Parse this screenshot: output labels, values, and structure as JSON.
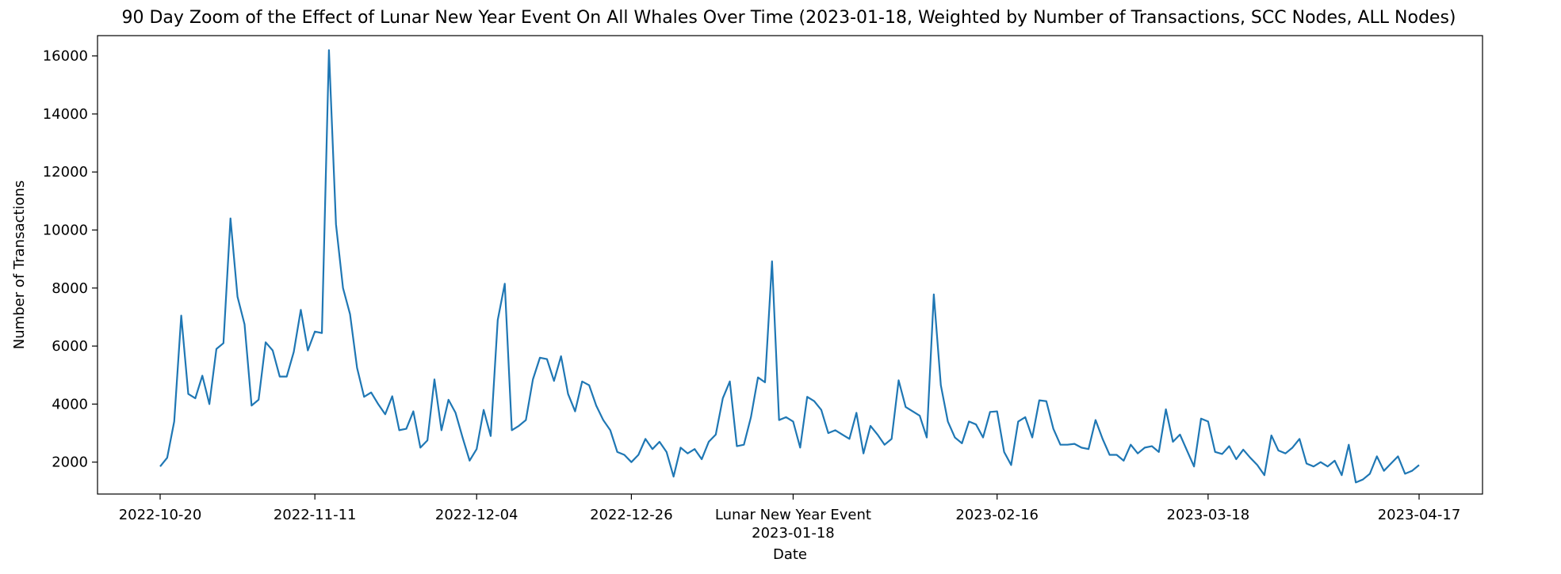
{
  "chart_data": {
    "type": "line",
    "title": "90 Day Zoom of the Effect of Lunar New Year Event On All Whales Over Time (2023-01-18, Weighted by Number of Transactions, SCC Nodes, ALL Nodes)",
    "xlabel": "Date",
    "ylabel": "Number of Transactions",
    "grid": false,
    "line_color": "#1f77b4",
    "x_start": "2022-10-20",
    "x_end": "2023-04-17",
    "ylim": [
      900,
      16700
    ],
    "x_ticks": [
      {
        "date": "2022-10-20",
        "label": "2022-10-20"
      },
      {
        "date": "2022-11-11",
        "label": "2022-11-11"
      },
      {
        "date": "2022-12-04",
        "label": "2022-12-04"
      },
      {
        "date": "2022-12-26",
        "label": "2022-12-26"
      },
      {
        "date": "2023-01-18",
        "label": "2023-01-18",
        "annotation": "Lunar New Year Event"
      },
      {
        "date": "2023-02-16",
        "label": "2023-02-16"
      },
      {
        "date": "2023-03-18",
        "label": "2023-03-18"
      },
      {
        "date": "2023-04-17",
        "label": "2023-04-17"
      }
    ],
    "y_ticks": [
      2000,
      4000,
      6000,
      8000,
      10000,
      12000,
      14000,
      16000
    ],
    "values": [
      1850,
      2150,
      3400,
      7050,
      4350,
      4200,
      4980,
      4000,
      5900,
      6100,
      10400,
      7700,
      6750,
      3950,
      4150,
      6130,
      5850,
      4950,
      4950,
      5800,
      7250,
      5850,
      6500,
      6450,
      16200,
      10200,
      8000,
      7100,
      5250,
      4250,
      4400,
      4000,
      3650,
      4270,
      3100,
      3150,
      3750,
      2500,
      2750,
      4850,
      3100,
      4150,
      3700,
      2850,
      2050,
      2450,
      3800,
      2900,
      6900,
      8150,
      3100,
      3250,
      3450,
      4850,
      5600,
      5550,
      4800,
      5650,
      4350,
      3750,
      4780,
      4650,
      3950,
      3450,
      3100,
      2350,
      2250,
      2000,
      2250,
      2800,
      2450,
      2700,
      2350,
      1500,
      2500,
      2300,
      2450,
      2100,
      2700,
      2950,
      4200,
      4780,
      2550,
      2600,
      3550,
      4920,
      4750,
      8920,
      3450,
      3550,
      3400,
      2500,
      4250,
      4100,
      3800,
      3000,
      3100,
      2950,
      2800,
      3700,
      2300,
      3250,
      2950,
      2600,
      2800,
      4820,
      3900,
      3750,
      3600,
      2850,
      7780,
      4650,
      3400,
      2850,
      2650,
      3400,
      3300,
      2850,
      3730,
      3750,
      2350,
      1900,
      3400,
      3550,
      2850,
      4130,
      4100,
      3150,
      2600,
      2600,
      2630,
      2500,
      2450,
      3450,
      2800,
      2250,
      2250,
      2050,
      2600,
      2300,
      2500,
      2550,
      2350,
      3820,
      2700,
      2950,
      2400,
      1850,
      3500,
      3400,
      2350,
      2280,
      2550,
      2100,
      2430,
      2150,
      1900,
      1550,
      2920,
      2400,
      2300,
      2500,
      2800,
      1950,
      1850,
      2000,
      1850,
      2050,
      1550,
      2600,
      1300,
      1400,
      1600,
      2200,
      1700,
      1950,
      2200,
      1600,
      1700,
      1900
    ]
  }
}
